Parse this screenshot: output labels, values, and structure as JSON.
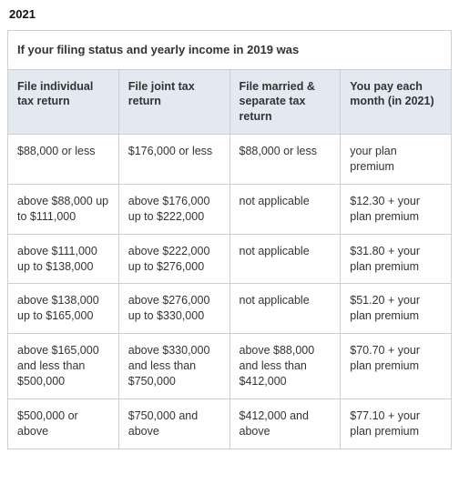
{
  "year": "2021",
  "caption": "If your filing status and yearly income in 2019 was",
  "columns": [
    "File individual tax return",
    "File joint tax return",
    "File married & separate tax return",
    "You pay each month (in 2021)"
  ],
  "rows": [
    [
      "$88,000 or less",
      "$176,000 or less",
      "$88,000 or less",
      "your plan premium"
    ],
    [
      "above $88,000 up to $111,000",
      "above $176,000 up to $222,000",
      "not applicable",
      "$12.30 + your plan premium"
    ],
    [
      "above $111,000 up to $138,000",
      "above $222,000 up to $276,000",
      "not applicable",
      "$31.80 + your plan premium"
    ],
    [
      "above $138,000 up to $165,000",
      "above $276,000 up to $330,000",
      "not applicable",
      "$51.20 + your plan premium"
    ],
    [
      "above $165,000 and less than $500,000",
      "above $330,000 and less than $750,000",
      "above $88,000 and less than $412,000",
      "$70.70 + your plan premium"
    ],
    [
      "$500,000 or above",
      "$750,000 and above",
      "$412,000 and above",
      "$77.10 + your plan premium"
    ]
  ],
  "colors": {
    "header_bg": "#e3e9f1",
    "border": "#cfcfcf",
    "text": "#333333",
    "background": "#ffffff"
  },
  "font": {
    "family": "Arial",
    "body_size_pt": 9,
    "heading_size_pt": 10
  }
}
